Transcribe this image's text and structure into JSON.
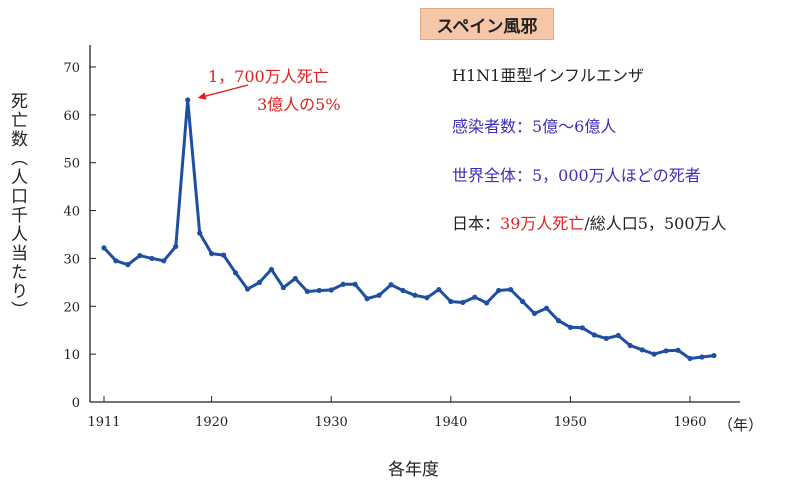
{
  "chart_data": {
    "type": "line",
    "title": "スペイン風邪",
    "ylabel": "死亡数（人口千人当たり）",
    "xlabel": "各年度",
    "x_unit": "（年）",
    "xlim": [
      1910,
      1962
    ],
    "ylim": [
      0,
      75
    ],
    "x_ticks": [
      1911,
      1920,
      1930,
      1940,
      1950,
      1960
    ],
    "y_ticks": [
      0,
      10,
      20,
      30,
      40,
      50,
      60,
      70
    ],
    "line_color": "#1f4fa0",
    "series": [
      {
        "x": [
          1911,
          1912,
          1913,
          1914,
          1915,
          1916,
          1917,
          1918,
          1919,
          1920,
          1921,
          1922,
          1923,
          1924,
          1925,
          1926,
          1927,
          1928,
          1929,
          1930,
          1931,
          1932,
          1933,
          1934,
          1935,
          1936,
          1937,
          1938,
          1939,
          1940,
          1941,
          1942,
          1943,
          1944,
          1945,
          1946,
          1947,
          1948,
          1949,
          1950,
          1951,
          1952,
          1953,
          1954,
          1955,
          1956,
          1957,
          1958,
          1959,
          1960,
          1961,
          1962
        ],
        "y": [
          32.2,
          29.5,
          28.7,
          30.6,
          30.0,
          29.5,
          32.5,
          63.1,
          35.3,
          31.0,
          30.7,
          27.0,
          23.6,
          25.0,
          27.7,
          23.9,
          25.8,
          23.1,
          23.3,
          23.4,
          24.6,
          24.6,
          21.6,
          22.3,
          24.5,
          23.3,
          22.3,
          21.8,
          23.5,
          21.0,
          20.8,
          21.9,
          20.7,
          23.3,
          23.5,
          21.0,
          18.5,
          19.6,
          17.0,
          15.6,
          15.5,
          14.0,
          13.3,
          13.9,
          11.8,
          10.9,
          10.0,
          10.7,
          10.8,
          9.1,
          9.4,
          9.7
        ]
      }
    ],
    "annotation": {
      "line1": "1，700万人死亡",
      "line2": "3億人の5%",
      "target_x": 1918,
      "target_y": 63.1,
      "color": "#e02020"
    }
  },
  "info": {
    "virus": "H1N1亜型インフルエンザ",
    "infected": "感染者数：5億～6億人",
    "world_deaths": "世界全体：5，000万人ほどの死者",
    "japan_prefix": "日本：",
    "japan_red": "39万人死亡",
    "japan_suffix": "/総人口5，500万人"
  }
}
